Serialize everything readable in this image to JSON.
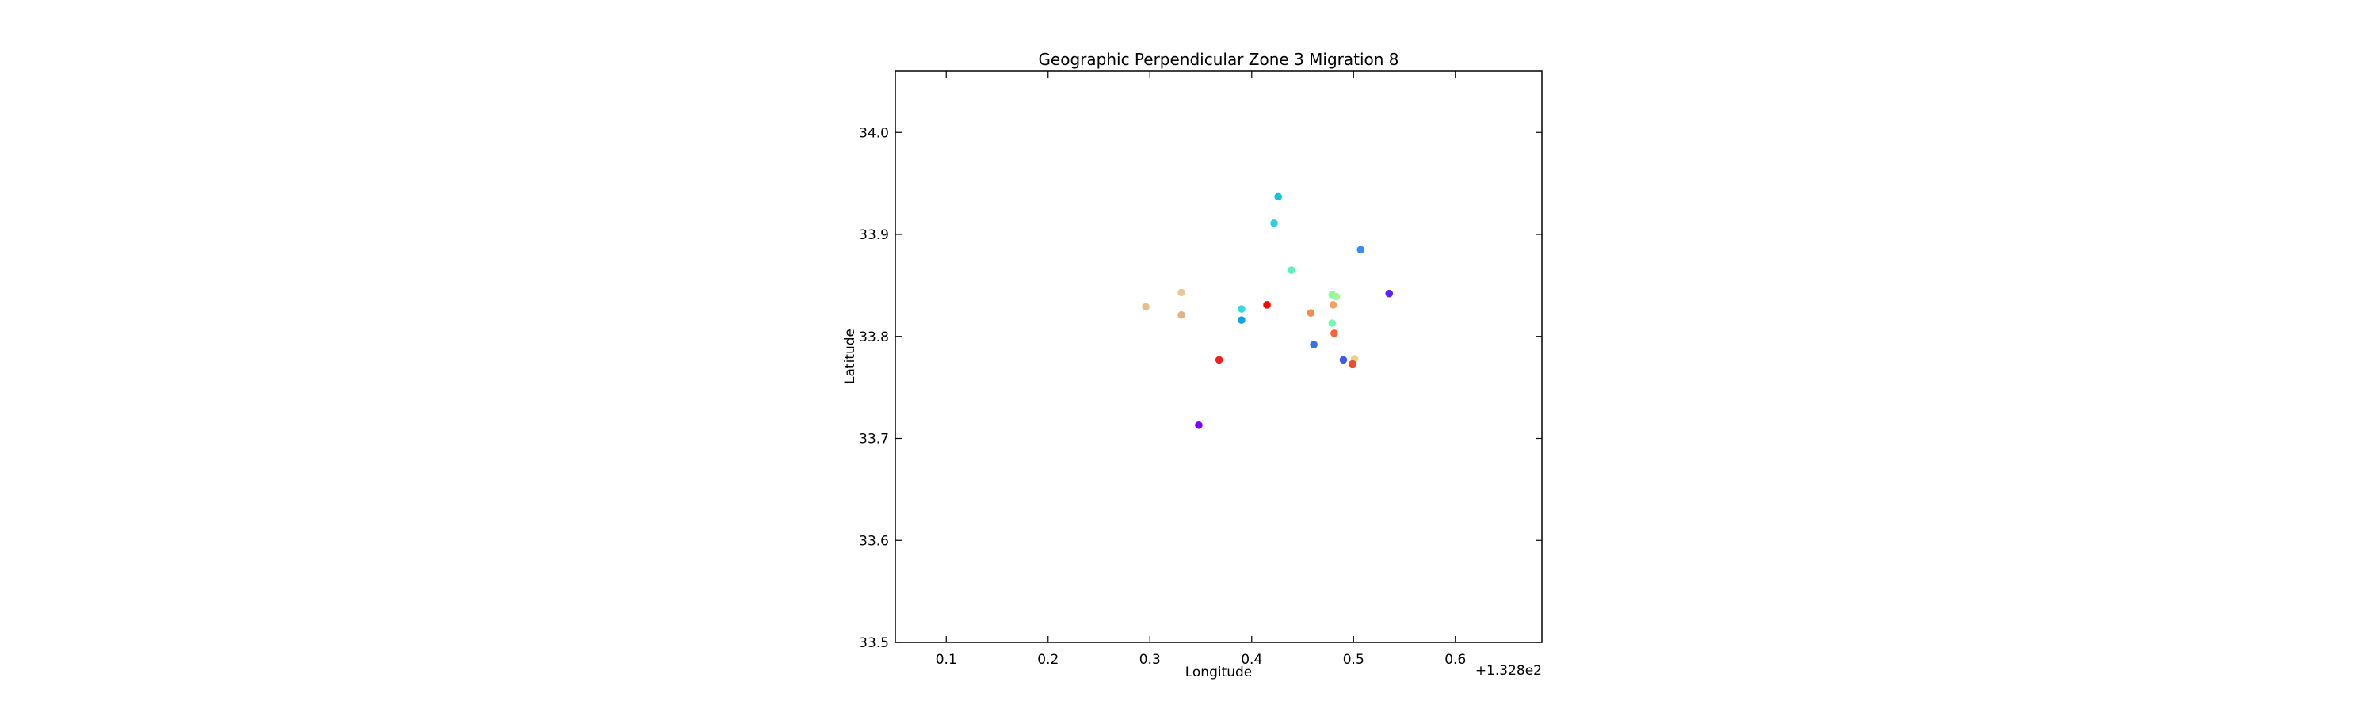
{
  "chart_data": {
    "type": "scatter",
    "title": "Geographic Perpendicular Zone 3 Migration 8",
    "xlabel": "Longitude",
    "ylabel": "Latitude",
    "x_offset_label": "+1.328e2",
    "x_offset": 132.8,
    "xlim": [
      132.85,
      133.485
    ],
    "ylim": [
      33.5,
      34.06
    ],
    "xticks": [
      132.9,
      133.0,
      133.1,
      133.2,
      133.3,
      133.4
    ],
    "xtick_labels": [
      "0.1",
      "0.2",
      "0.3",
      "0.4",
      "0.5",
      "0.6"
    ],
    "yticks": [
      33.5,
      33.6,
      33.7,
      33.8,
      33.9,
      34.0
    ],
    "ytick_labels": [
      "33.5",
      "33.6",
      "33.7",
      "33.8",
      "33.9",
      "34.0"
    ],
    "grid": false,
    "legend": "none",
    "points": [
      {
        "x": 133.148,
        "y": 33.713,
        "color": "#8000ff"
      },
      {
        "x": 133.335,
        "y": 33.842,
        "color": "#5a25f8"
      },
      {
        "x": 133.29,
        "y": 33.777,
        "color": "#3e5bee"
      },
      {
        "x": 133.261,
        "y": 33.792,
        "color": "#2f74e8"
      },
      {
        "x": 133.307,
        "y": 33.885,
        "color": "#3a8cf5"
      },
      {
        "x": 133.19,
        "y": 33.816,
        "color": "#10a2e6"
      },
      {
        "x": 133.226,
        "y": 33.937,
        "color": "#12c2e0"
      },
      {
        "x": 133.222,
        "y": 33.911,
        "color": "#2bd2d8"
      },
      {
        "x": 133.19,
        "y": 33.827,
        "color": "#35dcd4"
      },
      {
        "x": 133.239,
        "y": 33.865,
        "color": "#5ff0c0"
      },
      {
        "x": 133.279,
        "y": 33.813,
        "color": "#78f8b2"
      },
      {
        "x": 133.279,
        "y": 33.841,
        "color": "#92f8a4"
      },
      {
        "x": 133.283,
        "y": 33.839,
        "color": "#a0f896"
      },
      {
        "x": 133.301,
        "y": 33.778,
        "color": "#e6d28c"
      },
      {
        "x": 133.131,
        "y": 33.843,
        "color": "#e8c894"
      },
      {
        "x": 133.096,
        "y": 33.829,
        "color": "#e8be88"
      },
      {
        "x": 133.131,
        "y": 33.821,
        "color": "#e8b07c"
      },
      {
        "x": 133.28,
        "y": 33.831,
        "color": "#f4a261"
      },
      {
        "x": 133.258,
        "y": 33.823,
        "color": "#f58a4a"
      },
      {
        "x": 133.281,
        "y": 33.803,
        "color": "#f4643a"
      },
      {
        "x": 133.299,
        "y": 33.773,
        "color": "#ef4b2c"
      },
      {
        "x": 133.168,
        "y": 33.777,
        "color": "#f02020"
      },
      {
        "x": 133.215,
        "y": 33.831,
        "color": "#ff0000"
      }
    ]
  }
}
